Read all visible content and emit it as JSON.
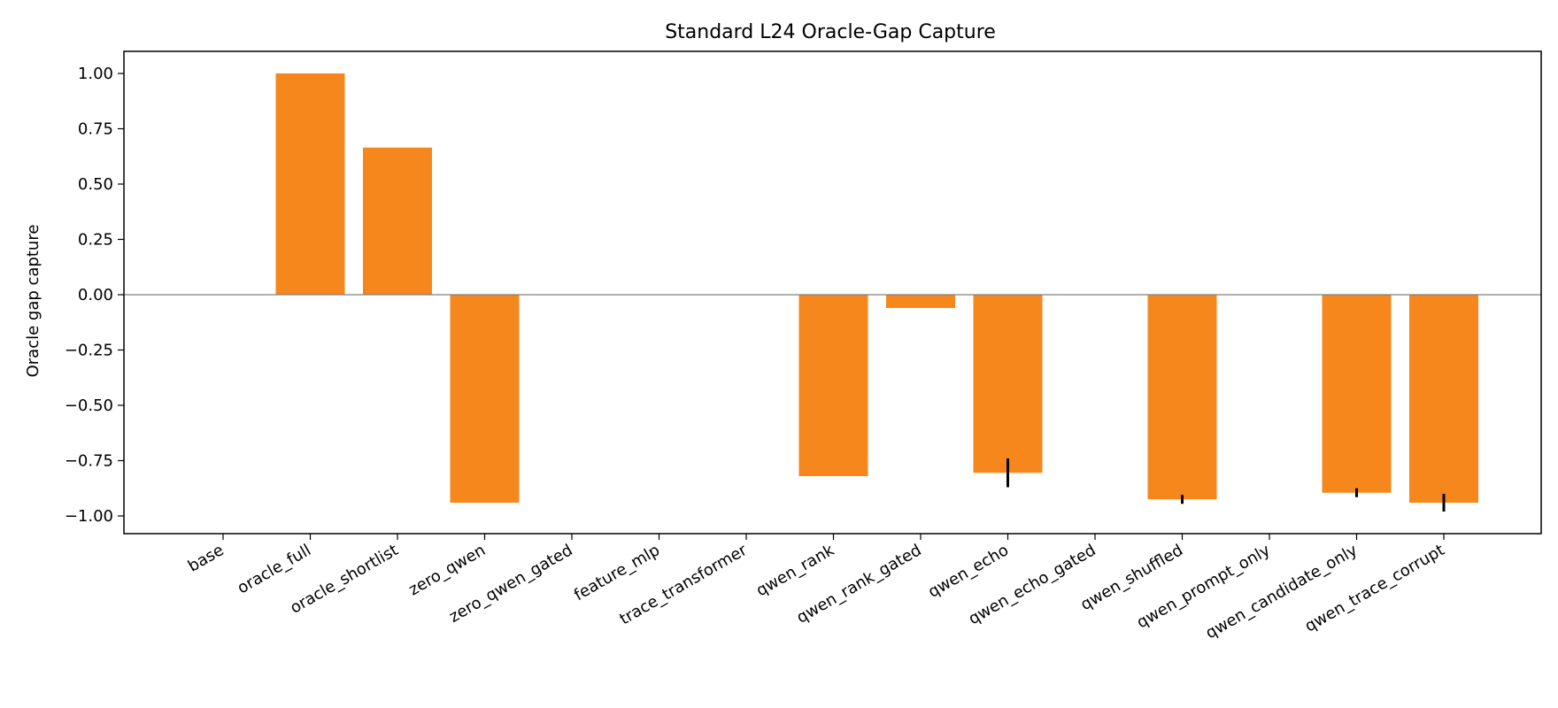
{
  "chart_data": {
    "type": "bar",
    "title": "Standard L24 Oracle-Gap Capture",
    "xlabel": "",
    "ylabel": "Oracle gap capture",
    "ylim": [
      -1.08,
      1.1
    ],
    "yticks": [
      1.0,
      0.75,
      0.5,
      0.25,
      0.0,
      -0.25,
      -0.5,
      -0.75,
      -1.0
    ],
    "ytick_labels": [
      "1.00",
      "0.75",
      "0.50",
      "0.25",
      "0.00",
      "−0.25",
      "−0.50",
      "−0.75",
      "−1.00"
    ],
    "grid": false,
    "legend": "none",
    "bar_color": "#f5871c",
    "zero_line_color": "#808080",
    "error_bar_color": "#000000",
    "categories": [
      "base",
      "oracle_full",
      "oracle_shortlist",
      "zero_qwen",
      "zero_qwen_gated",
      "feature_mlp",
      "trace_transformer",
      "qwen_rank",
      "qwen_rank_gated",
      "qwen_echo",
      "qwen_echo_gated",
      "qwen_shuffled",
      "qwen_prompt_only",
      "qwen_candidate_only",
      "qwen_trace_corrupt"
    ],
    "values": [
      0,
      1.0,
      0.665,
      -0.94,
      0,
      0,
      0,
      -0.82,
      -0.06,
      -0.805,
      0,
      -0.925,
      0,
      -0.895,
      -0.94
    ],
    "errors": [
      0,
      0,
      0,
      0,
      0,
      0,
      0,
      0,
      0,
      0.065,
      0,
      0.02,
      0,
      0.02,
      0.04
    ]
  }
}
